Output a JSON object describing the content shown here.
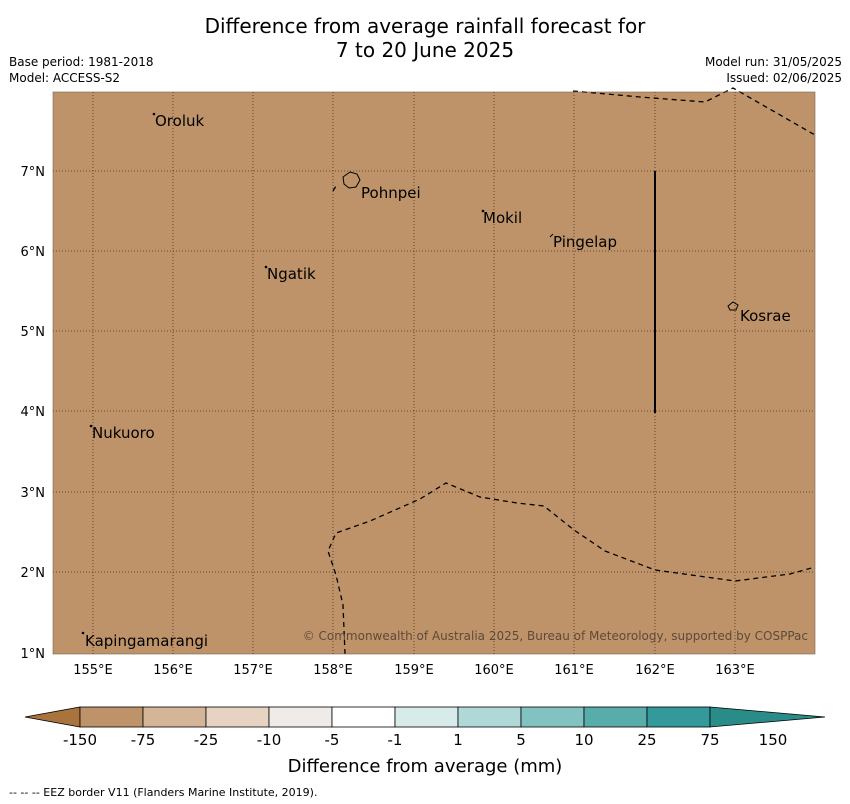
{
  "header": {
    "title_line1": "Difference from average rainfall forecast for",
    "title_line2": "7 to 20 June 2025",
    "base_period": "Base period: 1981-2018",
    "model": "Model: ACCESS-S2",
    "model_run": "Model run: 31/05/2025",
    "issued": "Issued: 02/06/2025"
  },
  "map": {
    "fill_color": "#bf936a",
    "lon_ticks": [
      "155°E",
      "156°E",
      "157°E",
      "158°E",
      "159°E",
      "160°E",
      "161°E",
      "162°E",
      "163°E"
    ],
    "lat_ticks": [
      "7°N",
      "6°N",
      "5°N",
      "4°N",
      "3°N",
      "2°N",
      "1°N"
    ],
    "places": [
      {
        "name": "Oroluk"
      },
      {
        "name": "Pohnpei"
      },
      {
        "name": "Mokil"
      },
      {
        "name": "Pingelap"
      },
      {
        "name": "Ngatik"
      },
      {
        "name": "Kosrae"
      },
      {
        "name": "Nukuoro"
      },
      {
        "name": "Kapingamarangi"
      }
    ],
    "copyright": "© Commonwealth of Australia 2025, Bureau of Meteorology, supported by COSPPac"
  },
  "legend": {
    "label": "Difference from average (mm)",
    "tick_labels": [
      "-150",
      "-75",
      "-25",
      "-10",
      "-5",
      "-1",
      "1",
      "5",
      "10",
      "25",
      "75",
      "150"
    ],
    "colors": [
      "#a8733d",
      "#bf936a",
      "#d4b597",
      "#e6d3c1",
      "#eeebe8",
      "#ffffff",
      "#d6ebea",
      "#b0d8d7",
      "#82c2c0",
      "#58aca9",
      "#34999a",
      "#2a8c89"
    ]
  },
  "footer": {
    "eez_note": "--  --  -- EEZ border V11 (Flanders Marine Institute, 2019)."
  }
}
